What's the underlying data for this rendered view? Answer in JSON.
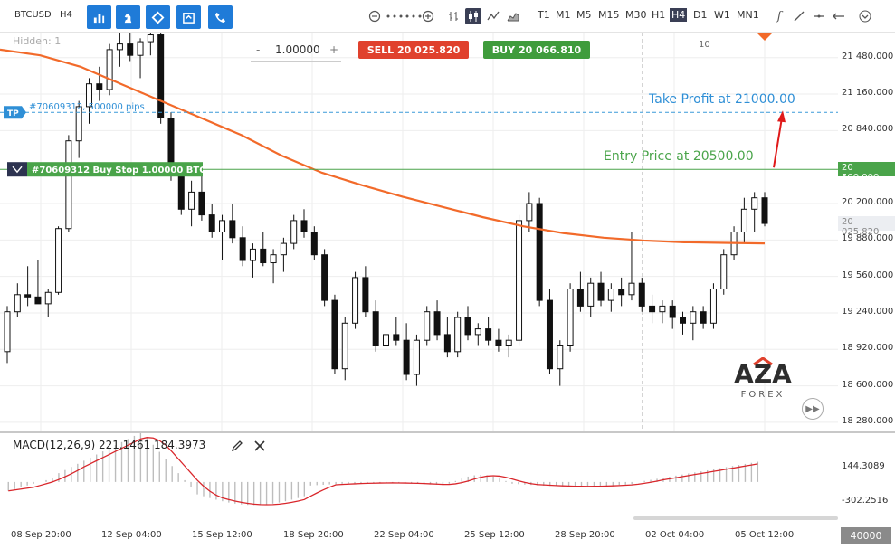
{
  "toolbar": {
    "symbol": "BTCUSD",
    "timeframe_current": "H4",
    "timeframes": [
      "T1",
      "M1",
      "M5",
      "M15",
      "M30",
      "H1",
      "H4",
      "D1",
      "W1",
      "MN1"
    ],
    "active_timeframe": "H4",
    "fx_label": "f",
    "hidden_count_label": "Hidden: 1"
  },
  "order_panel": {
    "quantity": "1.00000",
    "sell_label": "SELL",
    "sell_price": "20 025.820",
    "buy_label": "BUY",
    "buy_price": "20 066.810",
    "tick_marker": "10"
  },
  "annotations": {
    "tp_badge": "TP",
    "tp_order": "#70609312, 500000 pips",
    "take_profit_text": "Take Profit at 21000.00",
    "entry_order": "#70609312 Buy Stop 1.00000 BTC",
    "entry_price_text": "Entry Price at 20500.00",
    "entry_axis_label": "20 500.000",
    "current_price_axis_label": "20 025.820"
  },
  "price_axis": {
    "ticks": [
      "21 480.000",
      "21 160.000",
      "20 840.000",
      "20 200.000",
      "19 880.000",
      "19 560.000",
      "19 240.000",
      "18 920.000",
      "18 600.000",
      "18 280.000"
    ]
  },
  "macd": {
    "label": "MACD(12,26,9) 221.1461 184.3973",
    "axis_ticks": [
      "144.3089",
      "-302.2516"
    ]
  },
  "time_axis": {
    "labels": [
      "08 Sep 20:00",
      "12 Sep 04:00",
      "15 Sep 12:00",
      "18 Sep 20:00",
      "22 Sep 04:00",
      "25 Sep 12:00",
      "28 Sep 20:00",
      "02 Oct 04:00",
      "05 Oct 12:00"
    ]
  },
  "zoom": "40000",
  "logo": {
    "main": "AZA",
    "sub": "FOREX"
  },
  "colors": {
    "accent": "#1f7bd8",
    "sell": "#e0412d",
    "buy": "#3f9c3c",
    "ma_line": "#f26a2a",
    "tp_line": "#3a9ad9",
    "entry_line": "#4aa44a",
    "macd_signal": "#d9262b"
  },
  "chart_data": {
    "type": "candlestick",
    "symbol": "BTCUSD",
    "timeframe": "H4",
    "y_range": [
      18200,
      21700
    ],
    "levels": {
      "take_profit": 21000,
      "entry": 20500,
      "current": 20025.82
    },
    "candles": [
      [
        18900,
        19300,
        18800,
        19250
      ],
      [
        19250,
        19500,
        19200,
        19400
      ],
      [
        19400,
        19650,
        19300,
        19380
      ],
      [
        19380,
        19700,
        19320,
        19320
      ],
      [
        19320,
        19450,
        19200,
        19420
      ],
      [
        19420,
        20000,
        19400,
        19980
      ],
      [
        19980,
        20800,
        19950,
        20750
      ],
      [
        20750,
        21100,
        20600,
        21050
      ],
      [
        21050,
        21300,
        20900,
        21250
      ],
      [
        21250,
        21400,
        21100,
        21200
      ],
      [
        21200,
        21600,
        21150,
        21550
      ],
      [
        21550,
        21700,
        21400,
        21600
      ],
      [
        21600,
        21700,
        21450,
        21500
      ],
      [
        21500,
        21650,
        21300,
        21620
      ],
      [
        21620,
        21700,
        21500,
        21680
      ],
      [
        21680,
        21700,
        20900,
        20950
      ],
      [
        20950,
        21000,
        20400,
        20450
      ],
      [
        20450,
        20550,
        20100,
        20150
      ],
      [
        20150,
        20400,
        20000,
        20300
      ],
      [
        20300,
        20450,
        20050,
        20100
      ],
      [
        20100,
        20200,
        19900,
        19950
      ],
      [
        19950,
        20100,
        19700,
        20050
      ],
      [
        20050,
        20200,
        19850,
        19900
      ],
      [
        19900,
        20000,
        19650,
        19700
      ],
      [
        19700,
        19850,
        19550,
        19800
      ],
      [
        19800,
        19950,
        19650,
        19680
      ],
      [
        19680,
        19800,
        19500,
        19750
      ],
      [
        19750,
        19900,
        19600,
        19850
      ],
      [
        19850,
        20100,
        19800,
        20050
      ],
      [
        20050,
        20150,
        19900,
        19950
      ],
      [
        19950,
        20000,
        19700,
        19750
      ],
      [
        19750,
        19800,
        19300,
        19350
      ],
      [
        19350,
        19400,
        18700,
        18750
      ],
      [
        18750,
        19200,
        18650,
        19150
      ],
      [
        19150,
        19600,
        19100,
        19550
      ],
      [
        19550,
        19650,
        19200,
        19250
      ],
      [
        19250,
        19350,
        18900,
        18950
      ],
      [
        18950,
        19100,
        18850,
        19050
      ],
      [
        19050,
        19200,
        18950,
        19000
      ],
      [
        19000,
        19150,
        18650,
        18700
      ],
      [
        18700,
        19050,
        18600,
        19000
      ],
      [
        19000,
        19300,
        18950,
        19250
      ],
      [
        19250,
        19350,
        19000,
        19050
      ],
      [
        19050,
        19200,
        18850,
        18900
      ],
      [
        18900,
        19250,
        18850,
        19200
      ],
      [
        19200,
        19300,
        19000,
        19050
      ],
      [
        19050,
        19150,
        18950,
        19100
      ],
      [
        19100,
        19200,
        18950,
        19000
      ],
      [
        19000,
        19100,
        18900,
        18950
      ],
      [
        18950,
        19050,
        18850,
        19000
      ],
      [
        19000,
        20100,
        18950,
        20050
      ],
      [
        20050,
        20300,
        19950,
        20200
      ],
      [
        20200,
        20250,
        19300,
        19350
      ],
      [
        19350,
        19450,
        18700,
        18750
      ],
      [
        18750,
        19000,
        18600,
        18950
      ],
      [
        18950,
        19500,
        18900,
        19450
      ],
      [
        19450,
        19600,
        19250,
        19300
      ],
      [
        19300,
        19550,
        19200,
        19500
      ],
      [
        19500,
        19600,
        19300,
        19350
      ],
      [
        19350,
        19500,
        19250,
        19450
      ],
      [
        19450,
        19550,
        19300,
        19400
      ],
      [
        19400,
        19950,
        19350,
        19500
      ],
      [
        19500,
        19550,
        19250,
        19300
      ],
      [
        19300,
        19400,
        19150,
        19250
      ],
      [
        19250,
        19350,
        19150,
        19300
      ],
      [
        19300,
        19350,
        19100,
        19200
      ],
      [
        19200,
        19250,
        19050,
        19150
      ],
      [
        19150,
        19300,
        19000,
        19250
      ],
      [
        19250,
        19300,
        19100,
        19150
      ],
      [
        19150,
        19500,
        19100,
        19450
      ],
      [
        19450,
        19800,
        19400,
        19750
      ],
      [
        19750,
        20000,
        19700,
        19950
      ],
      [
        19950,
        20250,
        19850,
        20150
      ],
      [
        20150,
        20300,
        19950,
        20250
      ],
      [
        20250,
        20300,
        20000,
        20025
      ]
    ],
    "ma_line": [
      21550,
      21500,
      21400,
      21250,
      21100,
      20950,
      20800,
      20620,
      20470,
      20360,
      20260,
      20170,
      20080,
      20000,
      19940,
      19900,
      19875,
      19860,
      19855,
      19850
    ],
    "macd": {
      "label": "MACD(12,26,9)",
      "macd_value": 221.1461,
      "signal_value": 184.3973,
      "axis_ticks": [
        144.3089,
        -302.2516
      ]
    },
    "x_labels": [
      "08 Sep 20:00",
      "12 Sep 04:00",
      "15 Sep 12:00",
      "18 Sep 20:00",
      "22 Sep 04:00",
      "25 Sep 12:00",
      "28 Sep 20:00",
      "02 Oct 04:00",
      "05 Oct 12:00"
    ]
  }
}
